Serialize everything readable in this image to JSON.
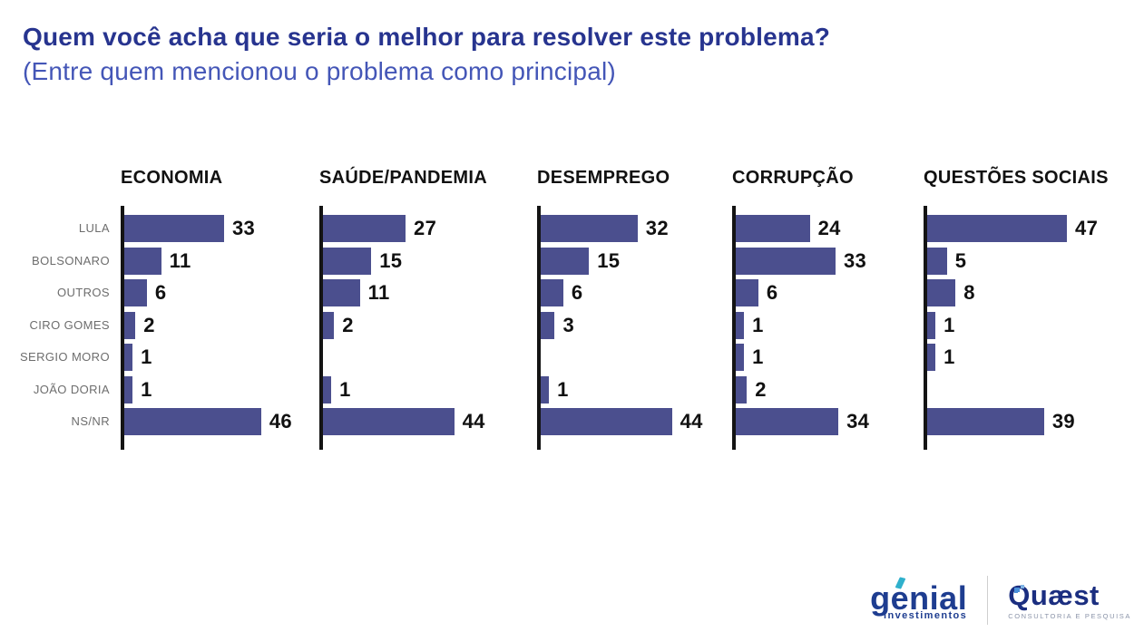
{
  "header": {
    "title": "Quem você acha que seria o melhor para resolver este problema?",
    "subtitle": "(Entre quem mencionou o problema como principal)"
  },
  "chart_data": {
    "type": "bar",
    "orientation": "horizontal",
    "categories": [
      "LULA",
      "BOLSONARO",
      "OUTROS",
      "CIRO GOMES",
      "SERGIO MORO",
      "JOÃO DORIA",
      "NS/NR"
    ],
    "series": [
      {
        "name": "ECONOMIA",
        "values": [
          33,
          11,
          6,
          2,
          1,
          1,
          46
        ]
      },
      {
        "name": "SAÚDE/PANDEMIA",
        "values": [
          27,
          15,
          11,
          2,
          null,
          1,
          44
        ]
      },
      {
        "name": "DESEMPREGO",
        "values": [
          32,
          15,
          6,
          3,
          null,
          1,
          44
        ]
      },
      {
        "name": "CORRUPÇÃO",
        "values": [
          24,
          33,
          6,
          1,
          1,
          2,
          34
        ]
      },
      {
        "name": "QUESTÕES SOCIAIS",
        "values": [
          47,
          5,
          8,
          1,
          1,
          null,
          39
        ]
      }
    ],
    "xlim": [
      0,
      52
    ],
    "value_labels": true,
    "grid": false,
    "legend": false,
    "bar_color": "#4b4f8e",
    "axis_color": "#141414"
  },
  "footer": {
    "genial": {
      "wordmark": "genial",
      "tagline": "investimentos"
    },
    "quaest": {
      "wordmark": "Quæst",
      "tagline": "CONSULTORIA E PESQUISA"
    }
  },
  "colors": {
    "title": "#27348f",
    "subtitle": "#4456b7",
    "bar": "#4b4f8e",
    "category_label": "#6d6d6d",
    "value_label": "#111111",
    "genial_blue": "#1e3d90",
    "genial_accent": "#2fb0cc",
    "quaest_navy": "#1b2e80",
    "quaest_gray": "#8a93a8"
  }
}
